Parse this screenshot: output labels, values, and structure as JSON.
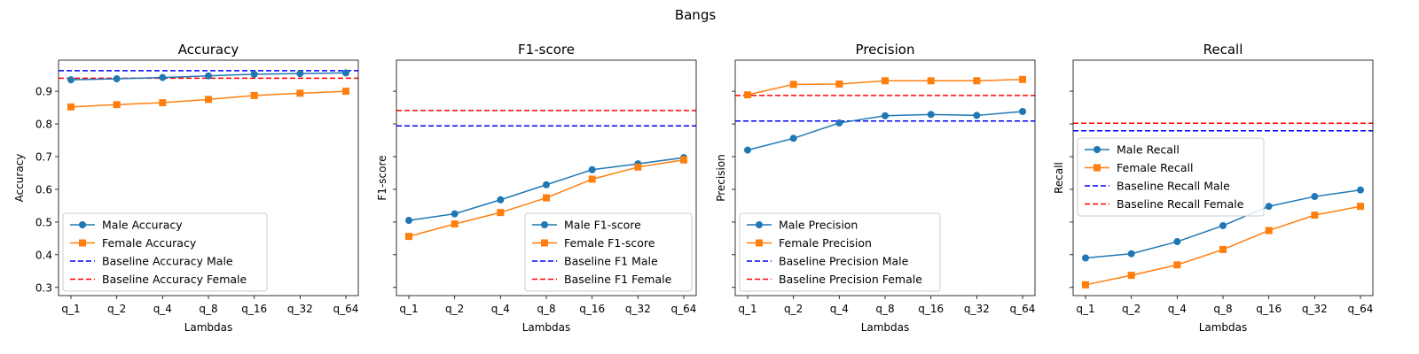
{
  "figure": {
    "suptitle": "Bangs"
  },
  "colors": {
    "male": "#1f77b4",
    "female": "#ff7f0e",
    "baseline_male": "#0000ff",
    "baseline_female": "#ff0000"
  },
  "shared": {
    "categories": [
      "q_1",
      "q_2",
      "q_4",
      "q_8",
      "q_16",
      "q_32",
      "q_64"
    ],
    "ylim": [
      0.275,
      0.995
    ],
    "yticks": [
      0.3,
      0.4,
      0.5,
      0.6,
      0.7,
      0.8,
      0.9
    ],
    "ytick_labels": [
      "0.3",
      "0.4",
      "0.5",
      "0.6",
      "0.7",
      "0.8",
      "0.9"
    ],
    "sharey": true
  },
  "chart_data": [
    {
      "type": "line",
      "title": "Accuracy",
      "xlabel": "Lambdas",
      "ylabel": "Accuracy",
      "legend_loc": "lower-left",
      "show_ytick_labels": true,
      "series": [
        {
          "name": "Male Accuracy",
          "marker": "circle",
          "color_key": "male",
          "values": [
            0.935,
            0.938,
            0.942,
            0.947,
            0.952,
            0.954,
            0.956
          ]
        },
        {
          "name": "Female Accuracy",
          "marker": "square",
          "color_key": "female",
          "values": [
            0.852,
            0.859,
            0.865,
            0.875,
            0.887,
            0.894,
            0.9
          ]
        }
      ],
      "baselines": [
        {
          "name": "Baseline Accuracy Male",
          "color_key": "baseline_male",
          "value": 0.963
        },
        {
          "name": "Baseline Accuracy Female",
          "color_key": "baseline_female",
          "value": 0.94
        }
      ]
    },
    {
      "type": "line",
      "title": "F1-score",
      "xlabel": "Lambdas",
      "ylabel": "F1-score",
      "legend_loc": "lower-right",
      "show_ytick_labels": false,
      "series": [
        {
          "name": "Male F1-score",
          "marker": "circle",
          "color_key": "male",
          "values": [
            0.505,
            0.525,
            0.568,
            0.614,
            0.66,
            0.678,
            0.697
          ]
        },
        {
          "name": "Female F1-score",
          "marker": "square",
          "color_key": "female",
          "values": [
            0.456,
            0.494,
            0.529,
            0.574,
            0.631,
            0.668,
            0.69
          ]
        }
      ],
      "baselines": [
        {
          "name": "Baseline F1 Male",
          "color_key": "baseline_male",
          "value": 0.794
        },
        {
          "name": "Baseline F1 Female",
          "color_key": "baseline_female",
          "value": 0.841
        }
      ]
    },
    {
      "type": "line",
      "title": "Precision",
      "xlabel": "Lambdas",
      "ylabel": "Precision",
      "legend_loc": "lower-left",
      "show_ytick_labels": false,
      "series": [
        {
          "name": "Male Precision",
          "marker": "circle",
          "color_key": "male",
          "values": [
            0.72,
            0.756,
            0.803,
            0.825,
            0.829,
            0.826,
            0.838
          ]
        },
        {
          "name": "Female Precision",
          "marker": "square",
          "color_key": "female",
          "values": [
            0.889,
            0.921,
            0.922,
            0.932,
            0.932,
            0.932,
            0.936
          ]
        }
      ],
      "baselines": [
        {
          "name": "Baseline Precision Male",
          "color_key": "baseline_male",
          "value": 0.809
        },
        {
          "name": "Baseline Precision Female",
          "color_key": "baseline_female",
          "value": 0.887
        }
      ]
    },
    {
      "type": "line",
      "title": "Recall",
      "xlabel": "Lambdas",
      "ylabel": "Recall",
      "legend_loc": "center-left",
      "show_ytick_labels": false,
      "series": [
        {
          "name": "Male Recall",
          "marker": "circle",
          "color_key": "male",
          "values": [
            0.39,
            0.403,
            0.44,
            0.489,
            0.548,
            0.578,
            0.598
          ]
        },
        {
          "name": "Female Recall",
          "marker": "square",
          "color_key": "female",
          "values": [
            0.308,
            0.337,
            0.369,
            0.416,
            0.474,
            0.521,
            0.548
          ]
        }
      ],
      "baselines": [
        {
          "name": "Baseline Recall Male",
          "color_key": "baseline_male",
          "value": 0.779
        },
        {
          "name": "Baseline Recall Female",
          "color_key": "baseline_female",
          "value": 0.802
        }
      ]
    }
  ]
}
